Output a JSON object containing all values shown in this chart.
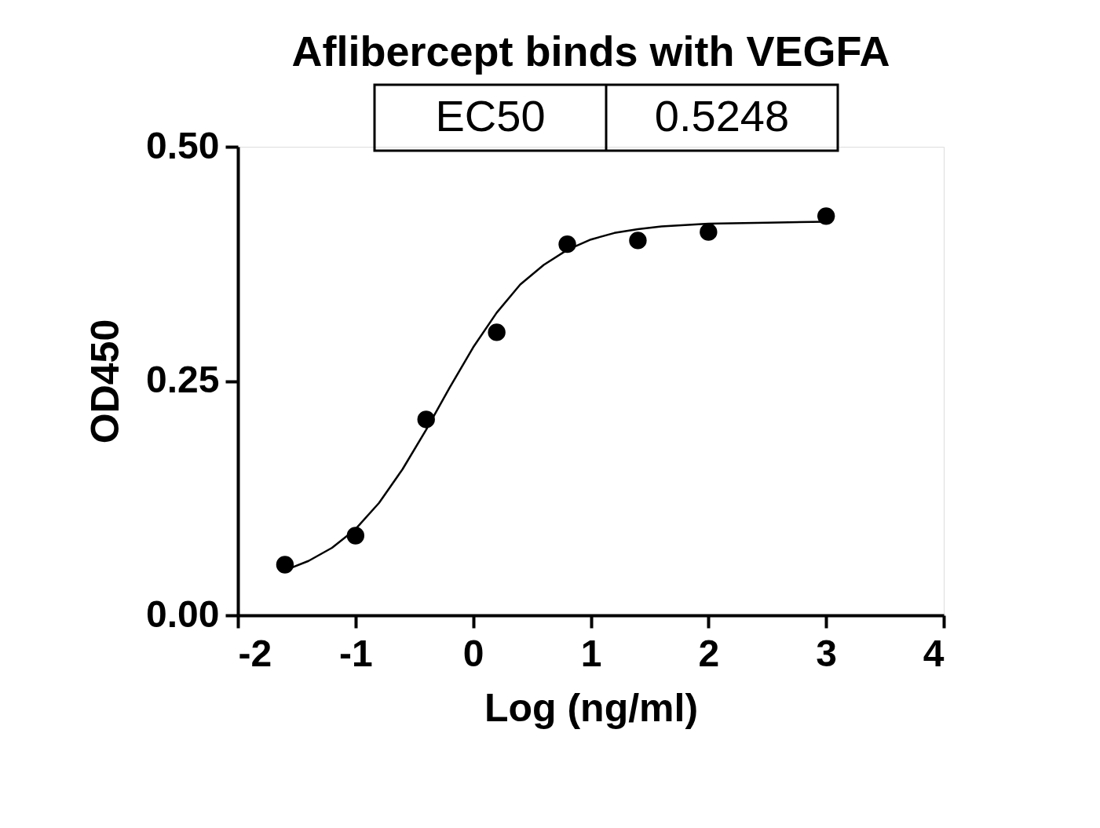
{
  "chart_data": {
    "type": "scatter",
    "title": "Aflibercept binds with VEGFA",
    "xlabel": "Log (ng/ml)",
    "ylabel": "OD450",
    "annotations": [
      "EC50",
      "0.5248"
    ],
    "series": [
      {
        "color": "#000000",
        "marker": "circle",
        "x": [
          -1.6,
          -1.0,
          -0.4,
          0.2,
          0.8,
          1.4,
          2.0,
          3.0
        ],
        "values": [
          0.054,
          0.085,
          0.209,
          0.302,
          0.396,
          0.4,
          0.409,
          0.426
        ]
      },
      {
        "type": "line",
        "color": "#000000",
        "line_style": "solid",
        "x": [
          -1.6,
          -1.4,
          -1.2,
          -1.0,
          -0.8,
          -0.6,
          -0.4,
          -0.2,
          0,
          0.2,
          0.4,
          0.6,
          0.8,
          1.0,
          1.2,
          1.4,
          1.6,
          2.0,
          2.5,
          3.0
        ],
        "values": [
          0.048,
          0.058,
          0.072,
          0.092,
          0.12,
          0.156,
          0.198,
          0.243,
          0.286,
          0.323,
          0.353,
          0.374,
          0.39,
          0.401,
          0.408,
          0.412,
          0.415,
          0.418,
          0.419,
          0.42
        ]
      }
    ],
    "xlim": [
      -2,
      4
    ],
    "xticks": [
      -2,
      -1,
      0,
      1,
      2,
      3,
      4
    ],
    "ylim": [
      0,
      0.5
    ],
    "yticks": [
      {
        "value": 0,
        "label": "0.00"
      },
      {
        "value": 0.25,
        "label": "0.25"
      },
      {
        "value": 0.5,
        "label": "0.50"
      }
    ],
    "grid": false
  }
}
